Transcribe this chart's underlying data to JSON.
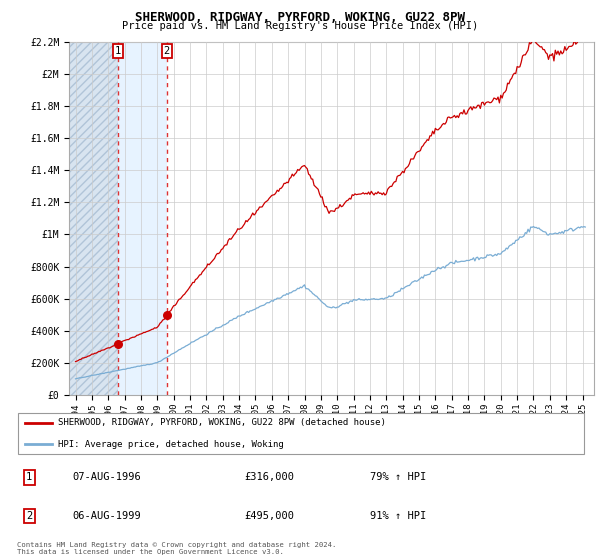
{
  "title": "SHERWOOD, RIDGWAY, PYRFORD, WOKING, GU22 8PW",
  "subtitle": "Price paid vs. HM Land Registry's House Price Index (HPI)",
  "background_color": "#ffffff",
  "plot_bg_color": "#ffffff",
  "grid_color": "#cccccc",
  "ylim": [
    0,
    2200000
  ],
  "yticks": [
    0,
    200000,
    400000,
    600000,
    800000,
    1000000,
    1200000,
    1400000,
    1600000,
    1800000,
    2000000,
    2200000
  ],
  "ytick_labels": [
    "£0",
    "£200K",
    "£400K",
    "£600K",
    "£800K",
    "£1M",
    "£1.2M",
    "£1.4M",
    "£1.6M",
    "£1.8M",
    "£2M",
    "£2.2M"
  ],
  "xlim_start": 1993.6,
  "xlim_end": 2025.7,
  "xticks": [
    1994,
    1995,
    1996,
    1997,
    1998,
    1999,
    2000,
    2001,
    2002,
    2003,
    2004,
    2005,
    2006,
    2007,
    2008,
    2009,
    2010,
    2011,
    2012,
    2013,
    2014,
    2015,
    2016,
    2017,
    2018,
    2019,
    2020,
    2021,
    2022,
    2023,
    2024,
    2025
  ],
  "sale1_x": 1996.58,
  "sale1_y": 316000,
  "sale1_label": "1",
  "sale1_date": "07-AUG-1996",
  "sale1_price": "£316,000",
  "sale1_hpi": "79% ↑ HPI",
  "sale2_x": 1999.58,
  "sale2_y": 495000,
  "sale2_label": "2",
  "sale2_date": "06-AUG-1999",
  "sale2_price": "£495,000",
  "sale2_hpi": "91% ↑ HPI",
  "red_line_color": "#cc0000",
  "blue_line_color": "#7aadd4",
  "marker_color": "#cc0000",
  "vline_color": "#dd3333",
  "hatch_color": "#d8e4f0",
  "shade_color": "#ddeeff",
  "legend_label_red": "SHERWOOD, RIDGWAY, PYRFORD, WOKING, GU22 8PW (detached house)",
  "legend_label_blue": "HPI: Average price, detached house, Woking",
  "footer": "Contains HM Land Registry data © Crown copyright and database right 2024.\nThis data is licensed under the Open Government Licence v3.0."
}
